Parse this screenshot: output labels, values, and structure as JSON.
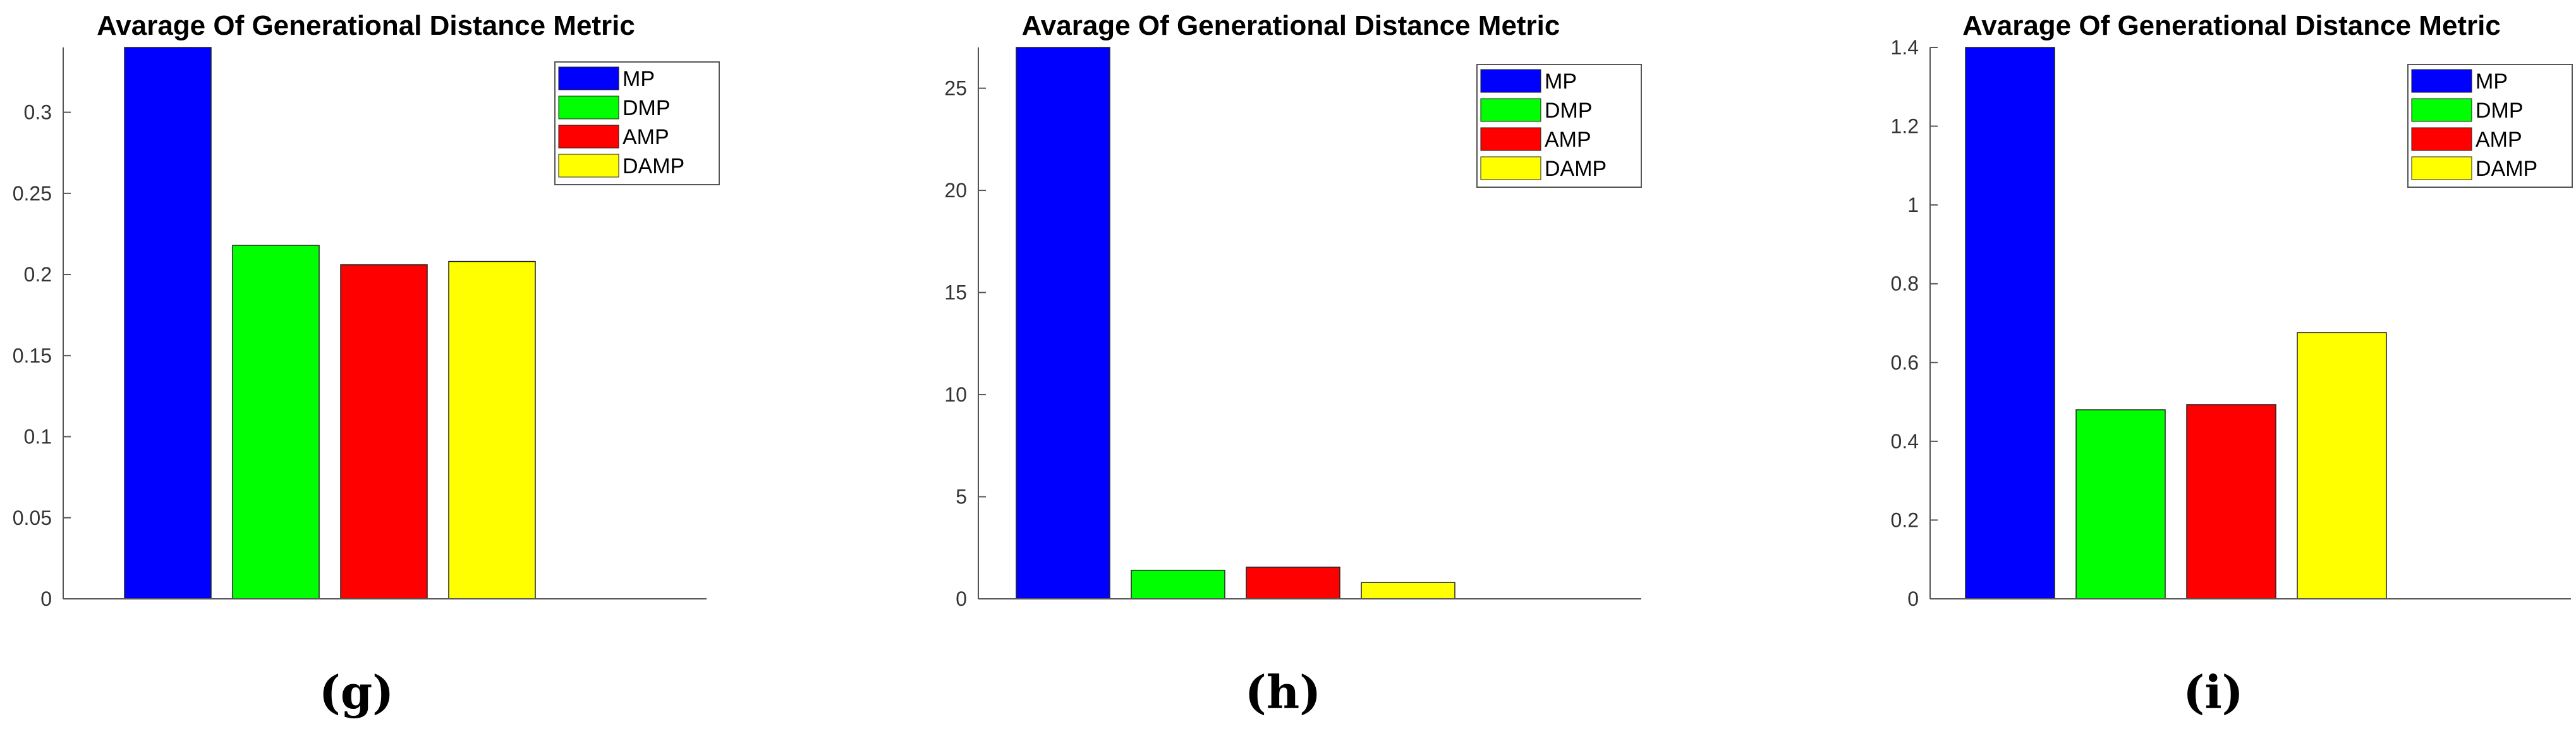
{
  "chart_data": [
    {
      "type": "bar",
      "title": "Avarage Of Generational Distance Metric",
      "caption": "(g)",
      "categories": [
        "MP",
        "DMP",
        "AMP",
        "DAMP"
      ],
      "values": [
        0.34,
        0.218,
        0.206,
        0.208
      ],
      "colors": [
        "#0000ff",
        "#00ff00",
        "#ff0000",
        "#ffff00"
      ],
      "ylim": [
        0,
        0.34
      ],
      "yticks": [
        0,
        0.05,
        0.1,
        0.15,
        0.2,
        0.25,
        0.3
      ],
      "ytick_labels": [
        "0",
        "0.05",
        "0.1",
        "0.15",
        "0.2",
        "0.25",
        "0.3"
      ],
      "legend": [
        "MP",
        "DMP",
        "AMP",
        "DAMP"
      ],
      "legend_position": "top-right",
      "xlabel": "",
      "ylabel": ""
    },
    {
      "type": "bar",
      "title": "Avarage Of Generational Distance Metric",
      "caption": "(h)",
      "categories": [
        "MP",
        "DMP",
        "AMP",
        "DAMP"
      ],
      "values": [
        27,
        1.4,
        1.55,
        0.8
      ],
      "colors": [
        "#0000ff",
        "#00ff00",
        "#ff0000",
        "#ffff00"
      ],
      "ylim": [
        0,
        27
      ],
      "yticks": [
        0,
        5,
        10,
        15,
        20,
        25
      ],
      "ytick_labels": [
        "0",
        "5",
        "10",
        "15",
        "20",
        "25"
      ],
      "legend": [
        "MP",
        "DMP",
        "AMP",
        "DAMP"
      ],
      "legend_position": "top-right",
      "xlabel": "",
      "ylabel": ""
    },
    {
      "type": "bar",
      "title": "Avarage Of Generational Distance Metric",
      "caption": "(i)",
      "categories": [
        "MP",
        "DMP",
        "AMP",
        "DAMP"
      ],
      "values": [
        1.4,
        0.48,
        0.493,
        0.676
      ],
      "colors": [
        "#0000ff",
        "#00ff00",
        "#ff0000",
        "#ffff00"
      ],
      "ylim": [
        0,
        1.4
      ],
      "yticks": [
        0,
        0.2,
        0.4,
        0.6,
        0.8,
        1,
        1.2,
        1.4
      ],
      "ytick_labels": [
        "0",
        "0.2",
        "0.4",
        "0.6",
        "0.8",
        "1",
        "1.2",
        "1.4"
      ],
      "legend": [
        "MP",
        "DMP",
        "AMP",
        "DAMP"
      ],
      "legend_position": "top-right",
      "xlabel": "",
      "ylabel": ""
    }
  ]
}
